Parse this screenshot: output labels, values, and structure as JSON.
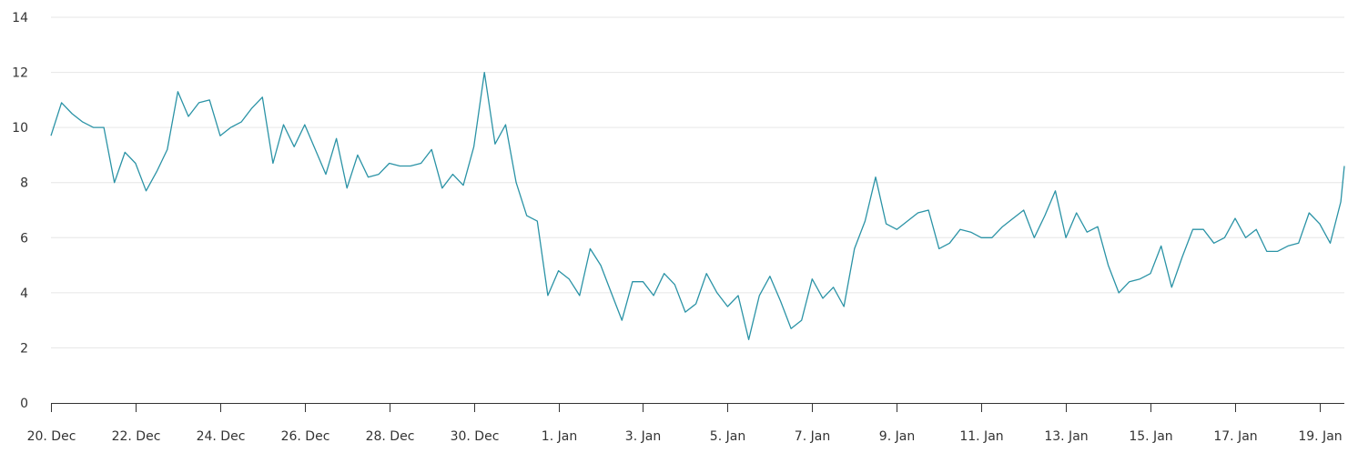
{
  "chart_data": {
    "type": "line",
    "title": "",
    "xlabel": "",
    "ylabel": "",
    "ylim": [
      0,
      14
    ],
    "yticks": [
      "0",
      "2",
      "4",
      "6",
      "8",
      "10",
      "12",
      "14"
    ],
    "xticks": [
      {
        "label": "20. Dec",
        "at": "12-20 00:00"
      },
      {
        "label": "22. Dec",
        "at": "12-22 00:00"
      },
      {
        "label": "24. Dec",
        "at": "12-24 00:00"
      },
      {
        "label": "26. Dec",
        "at": "12-26 00:00"
      },
      {
        "label": "28. Dec",
        "at": "12-28 00:00"
      },
      {
        "label": "30. Dec",
        "at": "12-30 00:00"
      },
      {
        "label": "1. Jan",
        "at": "01-01 00:00"
      },
      {
        "label": "3. Jan",
        "at": "01-03 00:00"
      },
      {
        "label": "5. Jan",
        "at": "01-05 00:00"
      },
      {
        "label": "7. Jan",
        "at": "01-07 00:00"
      },
      {
        "label": "9. Jan",
        "at": "01-09 00:00"
      },
      {
        "label": "11. Jan",
        "at": "01-11 00:00"
      },
      {
        "label": "13. Jan",
        "at": "01-13 00:00"
      },
      {
        "label": "15. Jan",
        "at": "01-15 00:00"
      },
      {
        "label": "17. Jan",
        "at": "01-17 00:00"
      },
      {
        "label": "19. Jan",
        "at": "01-19 00:00"
      }
    ],
    "xrange": [
      "12-20 00:00",
      "01-19 14:00"
    ],
    "grid": true,
    "colors": {
      "line": "#2b93a6",
      "grid": "#e6e6e6",
      "axis": "#333333"
    },
    "series": [
      {
        "points": [
          [
            "12-20 00:00",
            9.7
          ],
          [
            "12-20 06:00",
            10.9
          ],
          [
            "12-20 12:00",
            10.5
          ],
          [
            "12-20 18:00",
            10.2
          ],
          [
            "12-21 00:00",
            10.0
          ],
          [
            "12-21 06:00",
            10.0
          ],
          [
            "12-21 12:00",
            8.0
          ],
          [
            "12-21 18:00",
            9.1
          ],
          [
            "12-22 00:00",
            8.7
          ],
          [
            "12-22 06:00",
            7.7
          ],
          [
            "12-22 12:00",
            8.4
          ],
          [
            "12-22 18:00",
            9.2
          ],
          [
            "12-23 00:00",
            11.3
          ],
          [
            "12-23 06:00",
            10.4
          ],
          [
            "12-23 12:00",
            10.9
          ],
          [
            "12-23 18:00",
            11.0
          ],
          [
            "12-24 00:00",
            9.7
          ],
          [
            "12-24 06:00",
            10.0
          ],
          [
            "12-24 12:00",
            10.2
          ],
          [
            "12-24 18:00",
            10.7
          ],
          [
            "12-25 00:00",
            11.1
          ],
          [
            "12-25 06:00",
            8.7
          ],
          [
            "12-25 12:00",
            10.1
          ],
          [
            "12-25 18:00",
            9.3
          ],
          [
            "12-26 00:00",
            10.1
          ],
          [
            "12-26 06:00",
            9.2
          ],
          [
            "12-26 12:00",
            8.3
          ],
          [
            "12-26 18:00",
            9.6
          ],
          [
            "12-27 00:00",
            7.8
          ],
          [
            "12-27 06:00",
            9.0
          ],
          [
            "12-27 12:00",
            8.2
          ],
          [
            "12-27 18:00",
            8.3
          ],
          [
            "12-28 00:00",
            8.7
          ],
          [
            "12-28 06:00",
            8.6
          ],
          [
            "12-28 12:00",
            8.6
          ],
          [
            "12-28 18:00",
            8.7
          ],
          [
            "12-29 00:00",
            9.2
          ],
          [
            "12-29 06:00",
            7.8
          ],
          [
            "12-29 12:00",
            8.3
          ],
          [
            "12-29 18:00",
            7.9
          ],
          [
            "12-30 00:00",
            9.3
          ],
          [
            "12-30 06:00",
            12.0
          ],
          [
            "12-30 12:00",
            9.4
          ],
          [
            "12-30 18:00",
            10.1
          ],
          [
            "12-31 00:00",
            8.0
          ],
          [
            "12-31 06:00",
            6.8
          ],
          [
            "12-31 12:00",
            6.6
          ],
          [
            "12-31 18:00",
            3.9
          ],
          [
            "01-01 00:00",
            4.8
          ],
          [
            "01-01 06:00",
            4.5
          ],
          [
            "01-01 12:00",
            3.9
          ],
          [
            "01-01 18:00",
            5.6
          ],
          [
            "01-02 00:00",
            5.0
          ],
          [
            "01-02 06:00",
            4.0
          ],
          [
            "01-02 12:00",
            3.0
          ],
          [
            "01-02 18:00",
            4.4
          ],
          [
            "01-03 00:00",
            4.4
          ],
          [
            "01-03 06:00",
            3.9
          ],
          [
            "01-03 12:00",
            4.7
          ],
          [
            "01-03 18:00",
            4.3
          ],
          [
            "01-04 00:00",
            3.3
          ],
          [
            "01-04 06:00",
            3.6
          ],
          [
            "01-04 12:00",
            4.7
          ],
          [
            "01-04 18:00",
            4.0
          ],
          [
            "01-05 00:00",
            3.5
          ],
          [
            "01-05 06:00",
            3.9
          ],
          [
            "01-05 12:00",
            2.3
          ],
          [
            "01-05 18:00",
            3.9
          ],
          [
            "01-06 00:00",
            4.6
          ],
          [
            "01-06 06:00",
            3.7
          ],
          [
            "01-06 12:00",
            2.7
          ],
          [
            "01-06 18:00",
            3.0
          ],
          [
            "01-07 00:00",
            4.5
          ],
          [
            "01-07 06:00",
            3.8
          ],
          [
            "01-07 12:00",
            4.2
          ],
          [
            "01-07 18:00",
            3.5
          ],
          [
            "01-08 00:00",
            5.6
          ],
          [
            "01-08 06:00",
            6.6
          ],
          [
            "01-08 12:00",
            8.2
          ],
          [
            "01-08 18:00",
            6.5
          ],
          [
            "01-09 00:00",
            6.3
          ],
          [
            "01-09 06:00",
            6.6
          ],
          [
            "01-09 12:00",
            6.9
          ],
          [
            "01-09 18:00",
            7.0
          ],
          [
            "01-10 00:00",
            5.6
          ],
          [
            "01-10 06:00",
            5.8
          ],
          [
            "01-10 12:00",
            6.3
          ],
          [
            "01-10 18:00",
            6.2
          ],
          [
            "01-11 00:00",
            6.0
          ],
          [
            "01-11 06:00",
            6.0
          ],
          [
            "01-11 12:00",
            6.4
          ],
          [
            "01-11 18:00",
            6.7
          ],
          [
            "01-12 00:00",
            7.0
          ],
          [
            "01-12 06:00",
            6.0
          ],
          [
            "01-12 12:00",
            6.8
          ],
          [
            "01-12 18:00",
            7.7
          ],
          [
            "01-13 00:00",
            6.0
          ],
          [
            "01-13 06:00",
            6.9
          ],
          [
            "01-13 12:00",
            6.2
          ],
          [
            "01-13 18:00",
            6.4
          ],
          [
            "01-14 00:00",
            5.0
          ],
          [
            "01-14 06:00",
            4.0
          ],
          [
            "01-14 12:00",
            4.4
          ],
          [
            "01-14 18:00",
            4.5
          ],
          [
            "01-15 00:00",
            4.7
          ],
          [
            "01-15 06:00",
            5.7
          ],
          [
            "01-15 12:00",
            4.2
          ],
          [
            "01-15 18:00",
            5.3
          ],
          [
            "01-16 00:00",
            6.3
          ],
          [
            "01-16 06:00",
            6.3
          ],
          [
            "01-16 12:00",
            5.8
          ],
          [
            "01-16 18:00",
            6.0
          ],
          [
            "01-17 00:00",
            6.7
          ],
          [
            "01-17 06:00",
            6.0
          ],
          [
            "01-17 12:00",
            6.3
          ],
          [
            "01-17 18:00",
            5.5
          ],
          [
            "01-18 00:00",
            5.5
          ],
          [
            "01-18 06:00",
            5.7
          ],
          [
            "01-18 12:00",
            5.8
          ],
          [
            "01-18 18:00",
            6.9
          ],
          [
            "01-19 00:00",
            6.5
          ],
          [
            "01-19 06:00",
            5.8
          ],
          [
            "01-19 12:00",
            7.3
          ],
          [
            "01-19 14:00",
            8.6
          ]
        ]
      }
    ]
  }
}
